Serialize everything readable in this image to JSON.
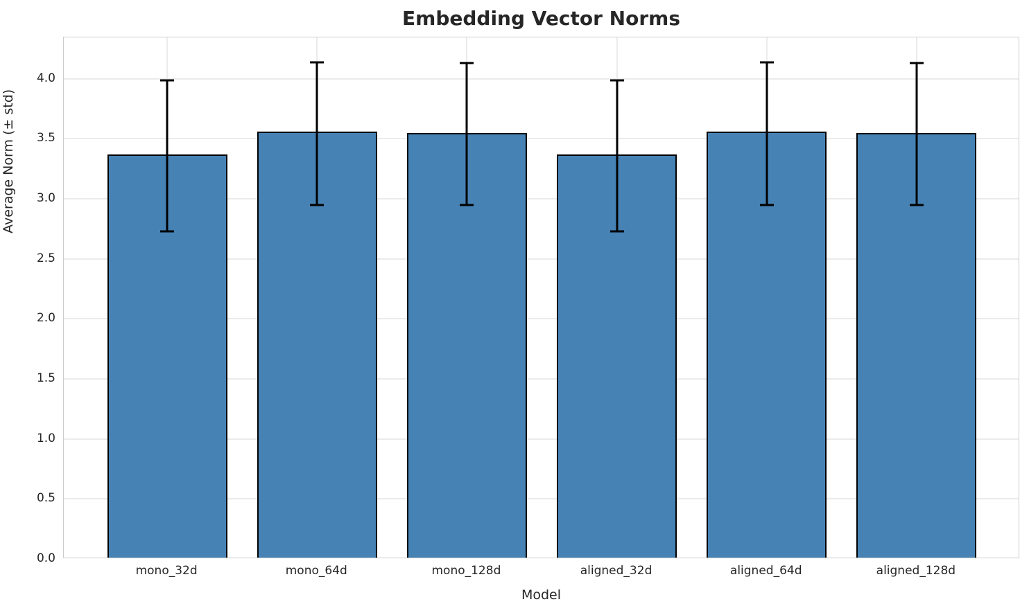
{
  "figure": {
    "background": "#ffffff"
  },
  "chart_data": {
    "type": "bar",
    "title": "Embedding Vector Norms",
    "xlabel": "Model",
    "ylabel": "Average Norm (± std)",
    "categories": [
      "mono_32d",
      "mono_64d",
      "mono_128d",
      "aligned_32d",
      "aligned_64d",
      "aligned_128d"
    ],
    "values": [
      3.36,
      3.55,
      3.54,
      3.36,
      3.55,
      3.54
    ],
    "error_low": [
      2.73,
      2.95,
      2.95,
      2.73,
      2.95,
      2.95
    ],
    "error_high": [
      3.99,
      4.14,
      4.13,
      3.99,
      4.14,
      4.13
    ],
    "y_ticks": [
      "0.0",
      "0.5",
      "1.0",
      "1.5",
      "2.0",
      "2.5",
      "3.0",
      "3.5",
      "4.0"
    ],
    "ylim": [
      0,
      4.345
    ],
    "xlim": [
      -0.69,
      5.69
    ],
    "bar_width": 0.8,
    "grid": true,
    "legend_position": "none",
    "colors": {
      "bar_fill": "#4682b4",
      "bar_edge": "#000000",
      "error_bar": "#000000",
      "grid_line": "#ebebeb",
      "spine": "#cccccc",
      "text": "#262626"
    }
  }
}
